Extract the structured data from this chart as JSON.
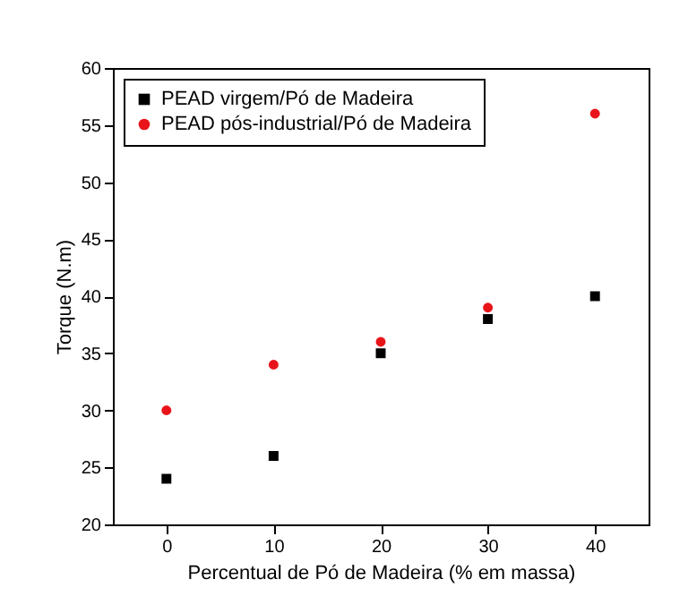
{
  "chart_data": {
    "type": "scatter",
    "xlabel": "Percentual de Pó de Madeira (% em massa)",
    "ylabel": "Torque (N.m)",
    "x": [
      0,
      10,
      20,
      30,
      40
    ],
    "series": [
      {
        "name": "PEAD virgem/Pó de Madeira",
        "color": "#000000",
        "marker": "square",
        "values": [
          24,
          26,
          35,
          38,
          40
        ]
      },
      {
        "name": "PEAD pós-industrial/Pó de Madeira",
        "color": "#e8141a",
        "marker": "circle",
        "values": [
          30,
          34,
          36,
          39,
          56
        ]
      }
    ],
    "xlim": [
      -5,
      45
    ],
    "xticks": [
      0,
      10,
      20,
      30,
      40
    ],
    "ylim": [
      20,
      60
    ],
    "yticks": [
      20,
      25,
      30,
      35,
      40,
      45,
      50,
      55,
      60
    ],
    "grid": false,
    "legend": "top left"
  }
}
